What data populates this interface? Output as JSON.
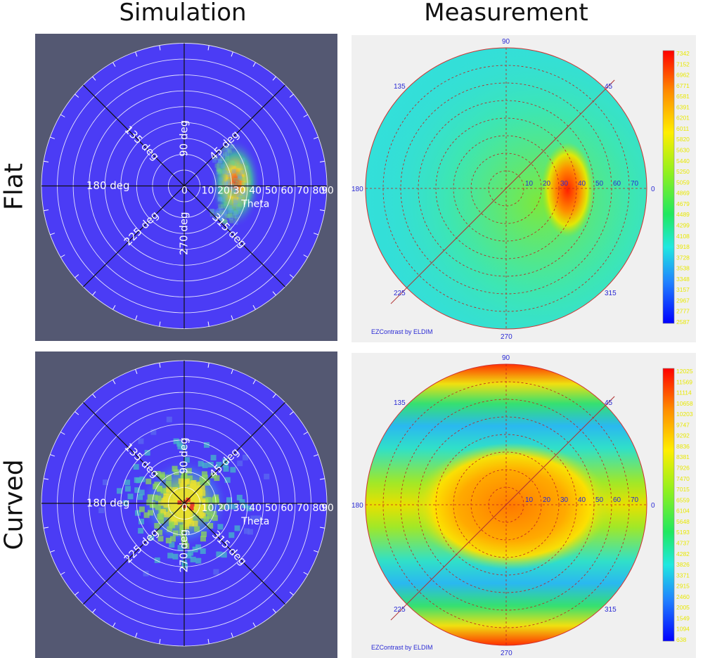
{
  "column_titles": [
    "Simulation",
    "Measurement"
  ],
  "row_titles": [
    "Flat",
    "Curved"
  ],
  "chart_data": [
    {
      "type": "heatmap",
      "subtype": "polar",
      "panel": "flat-simulation",
      "theta_labels": [
        "0",
        "10",
        "20",
        "30",
        "40",
        "50",
        "60",
        "70",
        "80",
        "90"
      ],
      "theta_axis_label": "Theta",
      "angle_labels": [
        "45 deg",
        "90 deg",
        "135 deg",
        "180 deg",
        "225 deg",
        "270 deg",
        "315 deg"
      ],
      "theta_range": [
        0,
        90
      ],
      "peak": {
        "theta": 33,
        "phi_range_deg": [
          -40,
          40
        ]
      },
      "grid": true,
      "colors": {
        "background": "#545872",
        "base": "#4b3cf5",
        "grid": "#ffffff"
      }
    },
    {
      "type": "heatmap",
      "subtype": "polar",
      "panel": "flat-measurement",
      "theta_labels": [
        "10",
        "20",
        "30",
        "40",
        "50",
        "60",
        "70"
      ],
      "angle_labels": [
        "0",
        "45",
        "90",
        "135",
        "180",
        "225",
        "270",
        "315"
      ],
      "theta_range": [
        0,
        80
      ],
      "peak": {
        "theta": 38,
        "phi_deg": 0
      },
      "colorbar": [
        "7342",
        "7152",
        "6962",
        "6771",
        "6581",
        "6391",
        "6201",
        "6011",
        "5820",
        "5630",
        "5440",
        "5250",
        "5059",
        "4869",
        "4679",
        "4489",
        "4299",
        "4108",
        "3918",
        "3728",
        "3538",
        "3348",
        "3157",
        "2967",
        "2777",
        "2587"
      ],
      "credit": "EZContrast by ELDIM",
      "grid": true
    },
    {
      "type": "heatmap",
      "subtype": "polar",
      "panel": "curved-simulation",
      "theta_labels": [
        "0",
        "10",
        "20",
        "30",
        "40",
        "50",
        "60",
        "70",
        "80",
        "90"
      ],
      "theta_axis_label": "Theta",
      "angle_labels": [
        "45 deg",
        "90 deg",
        "135 deg",
        "180 deg",
        "225 deg",
        "270 deg",
        "315 deg"
      ],
      "theta_range": [
        0,
        90
      ],
      "peak": {
        "theta": 0
      },
      "grid": true,
      "colors": {
        "background": "#545872",
        "base": "#4b3cf5",
        "grid": "#ffffff"
      }
    },
    {
      "type": "heatmap",
      "subtype": "polar",
      "panel": "curved-measurement",
      "theta_labels": [
        "10",
        "20",
        "30",
        "40",
        "50",
        "60",
        "70"
      ],
      "angle_labels": [
        "0",
        "45",
        "90",
        "135",
        "180",
        "225",
        "270",
        "315"
      ],
      "theta_range": [
        0,
        80
      ],
      "peak": {
        "theta": 0
      },
      "colorbar": [
        "12025",
        "11569",
        "11114",
        "10658",
        "10203",
        "9747",
        "9292",
        "8836",
        "8381",
        "7926",
        "7470",
        "7015",
        "6559",
        "6104",
        "5648",
        "5193",
        "4737",
        "4282",
        "3826",
        "3371",
        "2915",
        "2460",
        "2005",
        "1549",
        "1094",
        "638"
      ],
      "credit": "EZContrast by ELDIM",
      "grid": true
    }
  ]
}
